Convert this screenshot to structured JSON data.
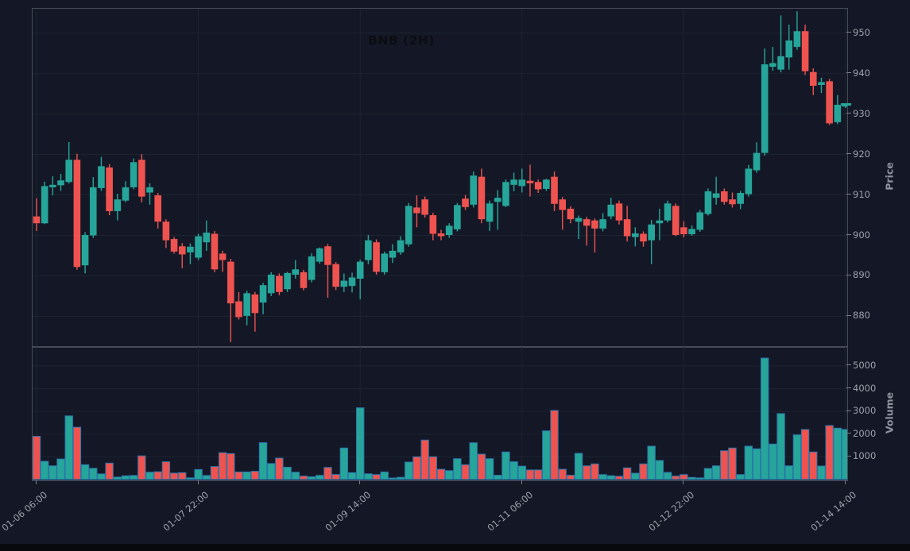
{
  "title": "BNB (2H)",
  "colors": {
    "background": "#141826",
    "up": "#26a69a",
    "down": "#ef5350",
    "volume_bar_edge": "#2b76ad",
    "grid": "#1d2330",
    "spine": "#454b57",
    "tick_text": "#9da1ab",
    "axis_title_text": "#8f939e",
    "title_text": "#0b0d12",
    "last_price_marker": "#26a69a"
  },
  "price_axis": {
    "label": "Price",
    "tick_labels": [
      "880",
      "890",
      "900",
      "910",
      "920",
      "930",
      "940",
      "950"
    ],
    "ticks": [
      880,
      890,
      900,
      910,
      920,
      930,
      940,
      950
    ],
    "view_min": 872.4,
    "view_max": 956.1
  },
  "volume_axis": {
    "label": "Volume",
    "tick_labels": [
      "1000",
      "2000",
      "3000",
      "4000",
      "5000"
    ],
    "ticks": [
      1000,
      2000,
      3000,
      4000,
      5000
    ],
    "view_min": 0,
    "view_max": 5838
  },
  "x_axis": {
    "tick_labels": [
      "01-06 06:00",
      "01-07 22:00",
      "01-09 14:00",
      "01-11 06:00",
      "01-12 22:00",
      "01-14 14:00"
    ],
    "tick_candle_indices": [
      0,
      20,
      40,
      60,
      80,
      100
    ]
  },
  "last_price": 932.2,
  "chart_data": {
    "type": "candlestick",
    "title": "BNB (2H)",
    "symbol": "BNB",
    "interval": "2H",
    "start_label": "01-06 06:00",
    "end_label": "01-14 14:00",
    "legend": "none",
    "grid": true,
    "candles_ohlcv": [
      [
        904.7,
        909.2,
        901.1,
        903.0,
        1900
      ],
      [
        903.0,
        913.3,
        902.8,
        912.2,
        800
      ],
      [
        911.9,
        914.6,
        909.9,
        912.5,
        600
      ],
      [
        912.4,
        915.2,
        911.0,
        913.6,
        900
      ],
      [
        913.2,
        923.1,
        912.8,
        918.7,
        2800
      ],
      [
        918.7,
        920.2,
        891.5,
        892.2,
        2300
      ],
      [
        892.6,
        900.8,
        890.6,
        900.1,
        650
      ],
      [
        900.0,
        914.4,
        899.4,
        911.9,
        490
      ],
      [
        911.7,
        919.4,
        911.0,
        917.1,
        245
      ],
      [
        916.8,
        917.6,
        905.0,
        906.0,
        720
      ],
      [
        906.0,
        910.3,
        903.7,
        908.9,
        105
      ],
      [
        908.6,
        913.4,
        908.2,
        911.9,
        160
      ],
      [
        911.9,
        919.0,
        911.4,
        918.1,
        175
      ],
      [
        918.7,
        920.1,
        908.2,
        909.6,
        1040
      ],
      [
        910.6,
        912.9,
        907.6,
        911.9,
        320
      ],
      [
        909.9,
        910.5,
        901.7,
        903.4,
        340
      ],
      [
        903.4,
        904.0,
        896.9,
        898.8,
        780
      ],
      [
        899.1,
        899.6,
        895.5,
        896.0,
        280
      ],
      [
        897.3,
        898.1,
        891.9,
        895.3,
        300
      ],
      [
        895.8,
        898.0,
        892.9,
        897.2,
        70
      ],
      [
        894.5,
        900.4,
        893.9,
        899.8,
        437
      ],
      [
        898.3,
        903.7,
        896.2,
        900.7,
        175
      ],
      [
        900.4,
        901.1,
        890.9,
        891.6,
        570
      ],
      [
        895.5,
        896.2,
        891.0,
        893.9,
        1180
      ],
      [
        893.5,
        894.2,
        873.6,
        883.2,
        1140
      ],
      [
        883.7,
        886.0,
        879.2,
        879.8,
        330
      ],
      [
        880.1,
        886.3,
        877.8,
        885.7,
        330
      ],
      [
        885.4,
        886.0,
        876.2,
        880.8,
        360
      ],
      [
        883.4,
        888.3,
        880.5,
        887.7,
        1620
      ],
      [
        885.7,
        890.9,
        885.0,
        890.3,
        700
      ],
      [
        890.0,
        890.6,
        885.2,
        886.0,
        940
      ],
      [
        886.7,
        891.0,
        886.0,
        890.7,
        540
      ],
      [
        890.3,
        893.9,
        889.3,
        891.6,
        320
      ],
      [
        890.9,
        891.5,
        886.4,
        887.0,
        150
      ],
      [
        889.0,
        895.6,
        888.4,
        894.8,
        120
      ],
      [
        893.5,
        897.0,
        893.0,
        896.8,
        180
      ],
      [
        897.3,
        897.9,
        884.6,
        892.7,
        530
      ],
      [
        892.9,
        893.4,
        886.5,
        887.3,
        220
      ],
      [
        887.3,
        890.6,
        886.0,
        888.8,
        1385
      ],
      [
        887.5,
        890.8,
        885.9,
        889.6,
        300
      ],
      [
        889.3,
        894.0,
        884.2,
        893.5,
        3155
      ],
      [
        893.9,
        900.1,
        892.9,
        898.8,
        250
      ],
      [
        898.3,
        899.0,
        890.3,
        891.0,
        215
      ],
      [
        890.9,
        896.0,
        890.3,
        895.5,
        330
      ],
      [
        894.5,
        897.8,
        893.2,
        896.2,
        65
      ],
      [
        895.8,
        899.8,
        895.2,
        898.8,
        95
      ],
      [
        897.8,
        908.0,
        897.2,
        907.3,
        765
      ],
      [
        906.9,
        909.9,
        902.0,
        905.5,
        1000
      ],
      [
        908.9,
        909.6,
        904.4,
        905.1,
        1735
      ],
      [
        905.0,
        905.6,
        898.8,
        900.4,
        1000
      ],
      [
        900.5,
        901.4,
        898.8,
        899.8,
        450
      ],
      [
        900.1,
        903.0,
        899.4,
        902.4,
        390
      ],
      [
        901.5,
        908.0,
        901.0,
        907.5,
        915
      ],
      [
        909.1,
        910.0,
        906.3,
        907.0,
        650
      ],
      [
        907.6,
        915.8,
        906.9,
        914.8,
        1615
      ],
      [
        914.5,
        916.5,
        903.0,
        904.0,
        1115
      ],
      [
        903.4,
        908.6,
        901.1,
        907.9,
        915
      ],
      [
        908.3,
        911.2,
        901.4,
        909.3,
        185
      ],
      [
        907.3,
        913.8,
        907.0,
        913.2,
        1210
      ],
      [
        912.5,
        915.5,
        910.9,
        913.8,
        780
      ],
      [
        912.2,
        916.5,
        910.6,
        913.8,
        585
      ],
      [
        913.5,
        917.5,
        909.6,
        912.9,
        420
      ],
      [
        913.2,
        913.8,
        910.5,
        911.4,
        420
      ],
      [
        911.5,
        914.0,
        911.0,
        913.8,
        2140
      ],
      [
        914.5,
        915.8,
        906.0,
        907.8,
        3040
      ],
      [
        908.9,
        909.5,
        901.4,
        906.3,
        450
      ],
      [
        906.6,
        907.2,
        903.0,
        904.0,
        185
      ],
      [
        903.4,
        904.9,
        899.1,
        904.3,
        1150
      ],
      [
        904.0,
        904.6,
        897.5,
        902.4,
        600
      ],
      [
        903.7,
        904.2,
        895.8,
        901.7,
        685
      ],
      [
        901.7,
        905.5,
        901.0,
        904.0,
        215
      ],
      [
        904.7,
        909.3,
        904.0,
        907.6,
        165
      ],
      [
        907.9,
        908.6,
        902.7,
        903.7,
        140
      ],
      [
        904.0,
        907.3,
        898.5,
        899.8,
        510
      ],
      [
        899.6,
        902.0,
        897.3,
        900.5,
        275
      ],
      [
        900.4,
        901.0,
        897.2,
        898.5,
        685
      ],
      [
        898.8,
        903.8,
        892.9,
        902.7,
        1465
      ],
      [
        903.0,
        906.6,
        898.8,
        903.7,
        835
      ],
      [
        903.7,
        908.6,
        903.2,
        907.9,
        310
      ],
      [
        907.3,
        907.9,
        899.8,
        900.1,
        150
      ],
      [
        902.0,
        903.5,
        899.5,
        900.3,
        215
      ],
      [
        900.3,
        902.5,
        899.9,
        901.6,
        90
      ],
      [
        901.4,
        906.3,
        900.9,
        905.7,
        70
      ],
      [
        905.3,
        911.6,
        904.9,
        910.9,
        485
      ],
      [
        909.3,
        914.5,
        907.6,
        910.4,
        600
      ],
      [
        910.9,
        911.6,
        907.6,
        908.3,
        1265
      ],
      [
        908.9,
        910.6,
        906.9,
        907.7,
        1385
      ],
      [
        907.8,
        911.0,
        906.5,
        910.5,
        215
      ],
      [
        910.2,
        917.4,
        909.6,
        916.5,
        1465
      ],
      [
        916.1,
        923.0,
        915.5,
        920.4,
        1350
      ],
      [
        920.4,
        946.2,
        919.7,
        942.3,
        5345
      ],
      [
        941.7,
        946.6,
        940.7,
        942.6,
        1560
      ],
      [
        941.0,
        954.4,
        940.3,
        944.3,
        2900
      ],
      [
        944.0,
        952.1,
        941.0,
        948.2,
        600
      ],
      [
        946.6,
        955.4,
        945.9,
        950.5,
        1965
      ],
      [
        950.5,
        952.1,
        939.7,
        940.6,
        2200
      ],
      [
        940.4,
        941.3,
        934.7,
        937.0,
        1210
      ],
      [
        937.2,
        939.0,
        935.2,
        937.9,
        590
      ],
      [
        938.1,
        938.7,
        927.3,
        927.7,
        2375
      ],
      [
        928.0,
        934.7,
        927.5,
        932.3,
        2260
      ],
      [
        932.0,
        932.6,
        931.5,
        932.2,
        2200
      ]
    ]
  }
}
